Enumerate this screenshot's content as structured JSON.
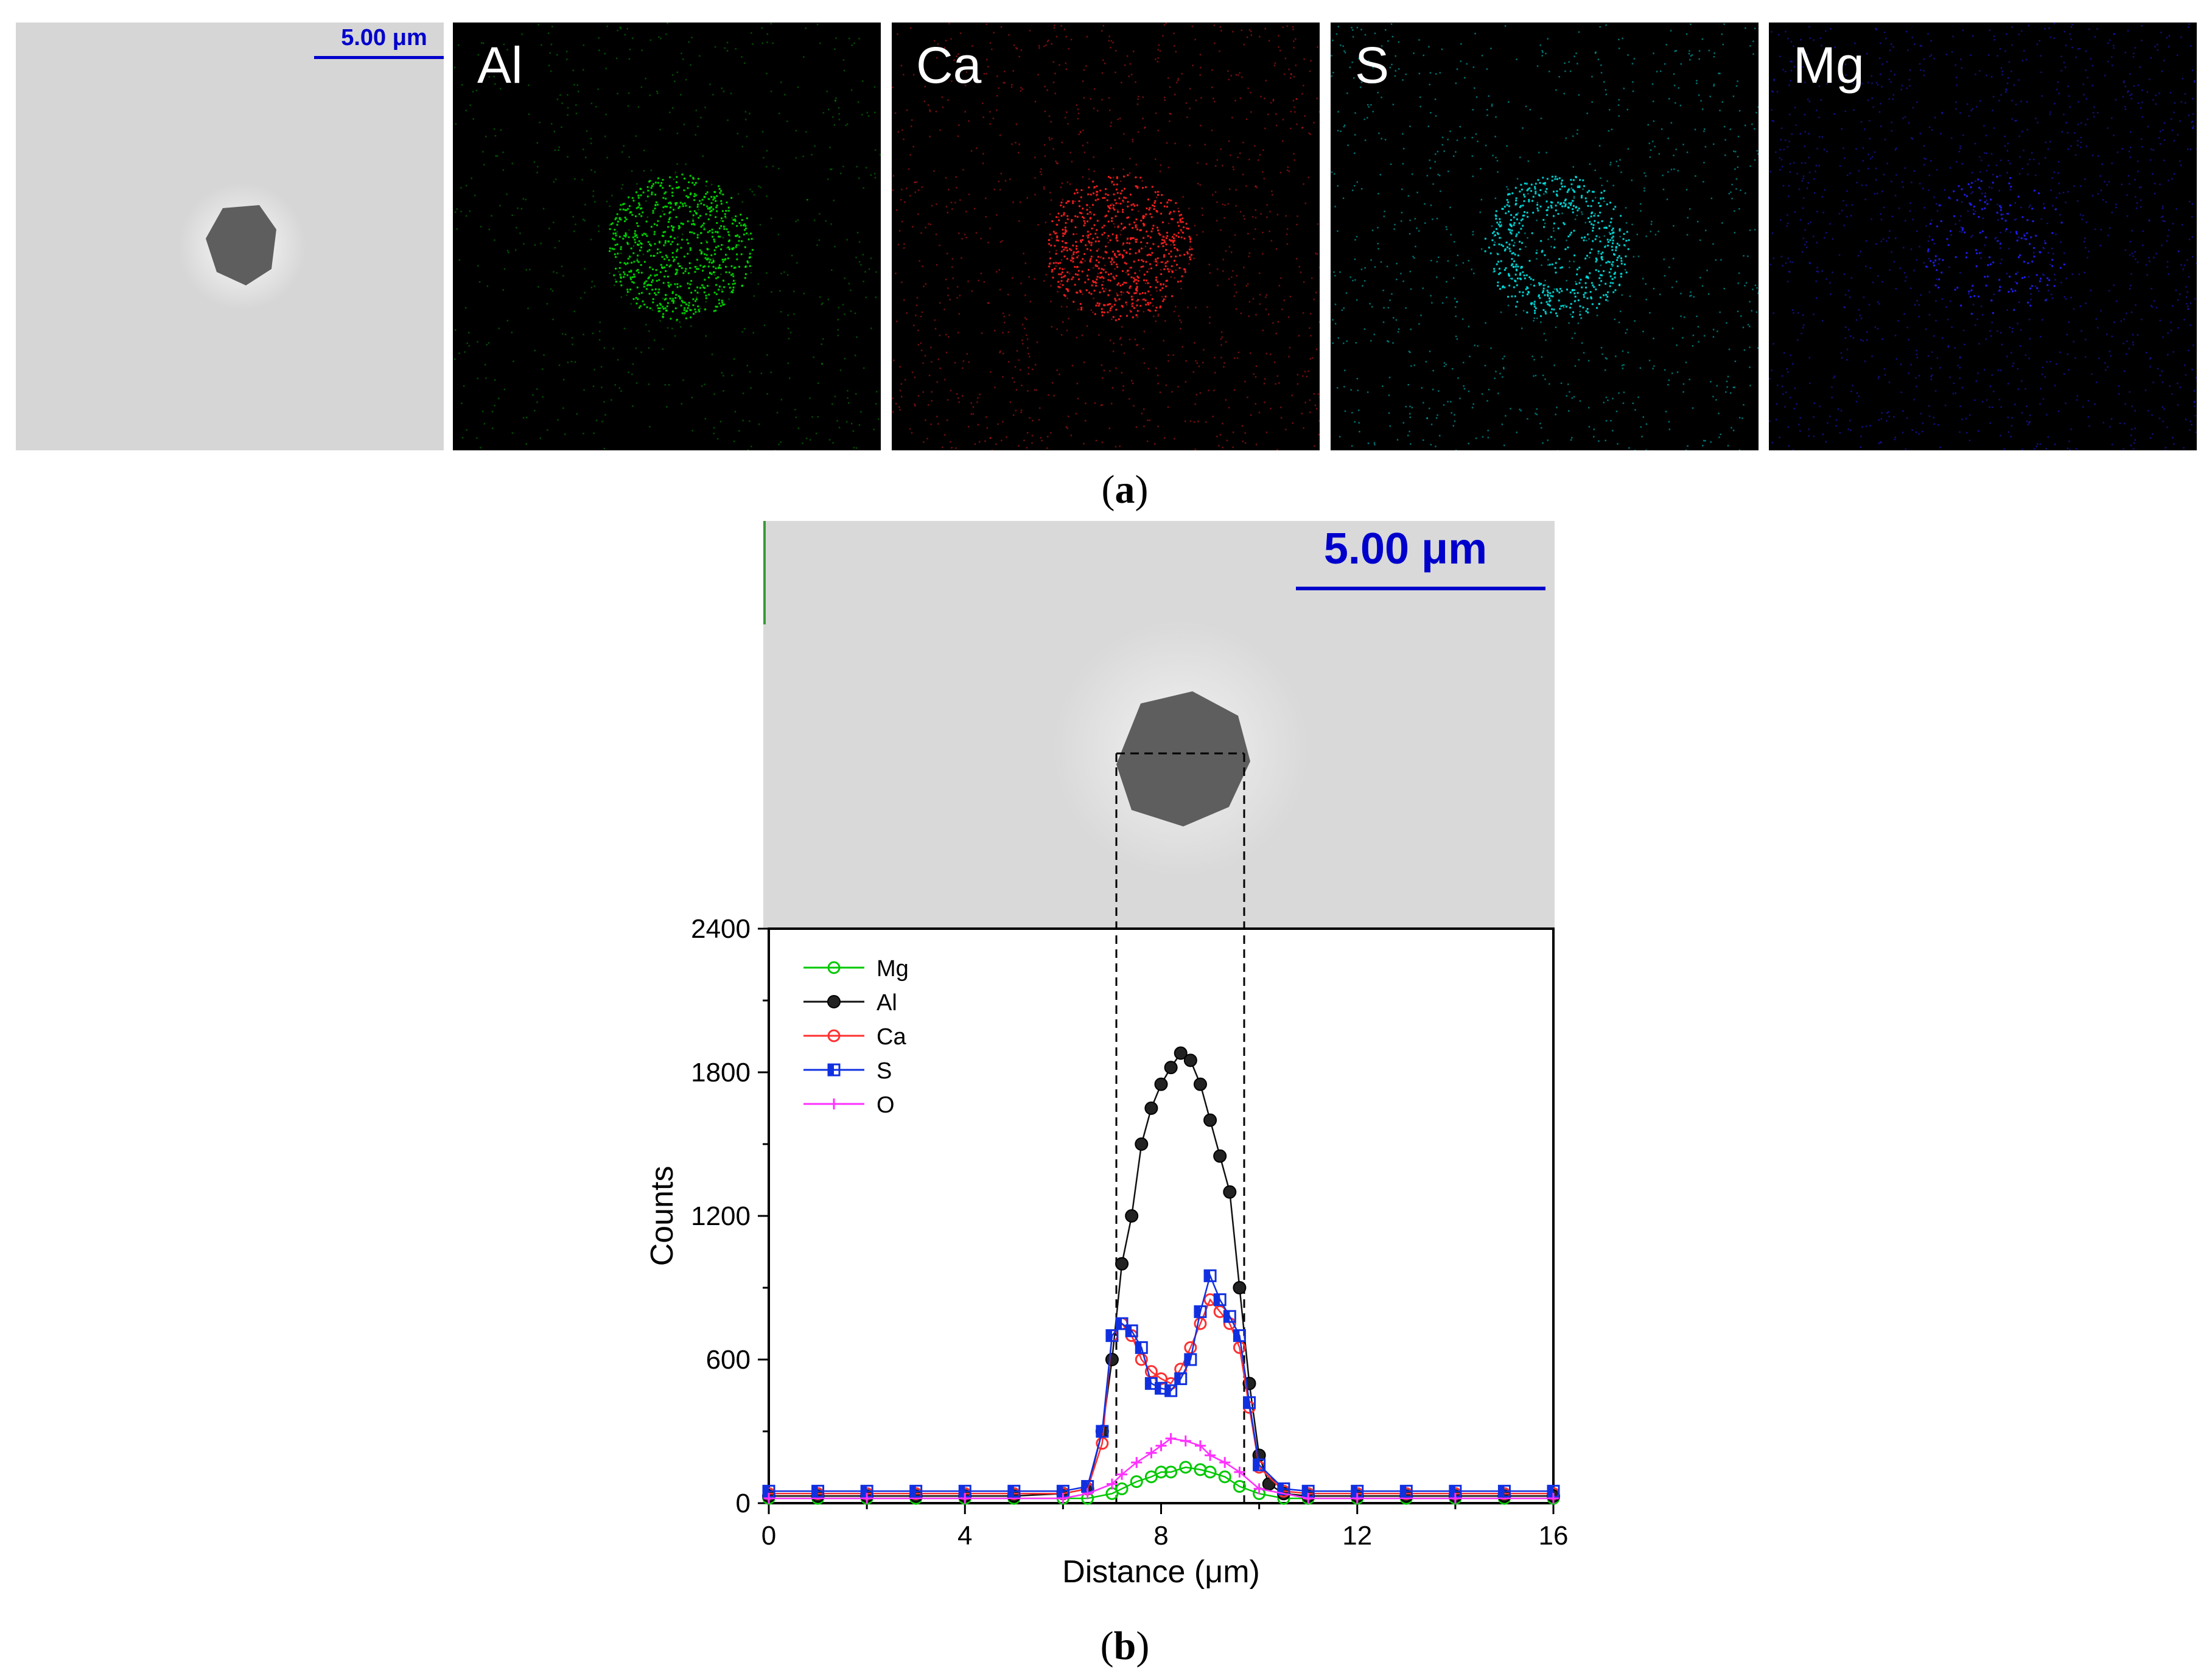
{
  "panel_a": {
    "caption_letter": "a",
    "scale_bar": "5.00 μm",
    "maps": [
      {
        "label": "Al",
        "color": "#00e000"
      },
      {
        "label": "Ca",
        "color": "#ff2020"
      },
      {
        "label": "S",
        "color": "#00e0e0"
      },
      {
        "label": "Mg",
        "color": "#2020ff"
      }
    ]
  },
  "panel_b": {
    "caption_letter": "b",
    "scale_bar": "5.00 μm"
  },
  "chart_data": {
    "type": "line",
    "title": "",
    "xlabel": "Distance (μm)",
    "ylabel": "Counts",
    "xlim": [
      0,
      16
    ],
    "ylim": [
      0,
      2400
    ],
    "xticks": [
      "0",
      "4",
      "8",
      "12",
      "16"
    ],
    "yticks": [
      "0",
      "600",
      "1200",
      "1800",
      "2400"
    ],
    "grid": false,
    "legend": "top-left",
    "series": [
      {
        "name": "Mg",
        "color": "#00c800",
        "marker": "open-circle",
        "x": [
          0,
          1,
          2,
          3,
          4,
          5,
          6,
          6.5,
          7,
          7.2,
          7.5,
          7.8,
          8,
          8.2,
          8.5,
          8.8,
          9,
          9.3,
          9.6,
          10,
          10.5,
          11,
          12,
          13,
          14,
          15,
          16
        ],
        "y": [
          20,
          20,
          20,
          20,
          20,
          20,
          20,
          20,
          40,
          60,
          90,
          110,
          130,
          130,
          150,
          140,
          130,
          110,
          70,
          40,
          20,
          20,
          20,
          20,
          20,
          20,
          20
        ]
      },
      {
        "name": "Al",
        "color": "#111111",
        "marker": "filled-circle",
        "x": [
          0,
          1,
          2,
          3,
          4,
          5,
          6,
          6.5,
          6.8,
          7,
          7.2,
          7.4,
          7.6,
          7.8,
          8,
          8.2,
          8.4,
          8.6,
          8.8,
          9,
          9.2,
          9.4,
          9.6,
          9.8,
          10,
          10.2,
          10.5,
          11,
          12,
          13,
          14,
          15,
          16
        ],
        "y": [
          30,
          30,
          30,
          30,
          30,
          30,
          40,
          60,
          300,
          600,
          1000,
          1200,
          1500,
          1650,
          1750,
          1820,
          1880,
          1850,
          1750,
          1600,
          1450,
          1300,
          900,
          500,
          200,
          80,
          40,
          30,
          30,
          30,
          30,
          30,
          30
        ]
      },
      {
        "name": "Ca",
        "color": "#ff3030",
        "marker": "open-circle",
        "x": [
          0,
          1,
          2,
          3,
          4,
          5,
          6,
          6.5,
          6.8,
          7,
          7.2,
          7.4,
          7.6,
          7.8,
          8,
          8.2,
          8.4,
          8.6,
          8.8,
          9,
          9.2,
          9.4,
          9.6,
          9.8,
          10,
          10.5,
          11,
          12,
          13,
          14,
          15,
          16
        ],
        "y": [
          40,
          40,
          40,
          40,
          40,
          40,
          40,
          60,
          250,
          700,
          750,
          700,
          600,
          550,
          520,
          500,
          560,
          650,
          750,
          850,
          800,
          750,
          650,
          400,
          150,
          50,
          40,
          40,
          40,
          40,
          40,
          40
        ]
      },
      {
        "name": "S",
        "color": "#1030e0",
        "marker": "half-square",
        "x": [
          0,
          1,
          2,
          3,
          4,
          5,
          6,
          6.5,
          6.8,
          7,
          7.2,
          7.4,
          7.6,
          7.8,
          8,
          8.2,
          8.4,
          8.6,
          8.8,
          9,
          9.2,
          9.4,
          9.6,
          9.8,
          10,
          10.5,
          11,
          12,
          13,
          14,
          15,
          16
        ],
        "y": [
          50,
          50,
          50,
          50,
          50,
          50,
          50,
          70,
          300,
          700,
          750,
          720,
          650,
          500,
          480,
          470,
          520,
          600,
          800,
          950,
          850,
          780,
          700,
          420,
          160,
          60,
          50,
          50,
          50,
          50,
          50,
          50
        ]
      },
      {
        "name": "O",
        "color": "#ff30ff",
        "marker": "plus",
        "x": [
          0,
          2,
          4,
          6,
          6.5,
          7,
          7.2,
          7.5,
          7.8,
          8,
          8.2,
          8.5,
          8.8,
          9,
          9.3,
          9.6,
          10,
          11,
          12,
          14,
          16
        ],
        "y": [
          20,
          20,
          20,
          20,
          40,
          80,
          120,
          170,
          210,
          240,
          270,
          260,
          240,
          200,
          170,
          130,
          60,
          20,
          20,
          20,
          20
        ]
      }
    ]
  }
}
